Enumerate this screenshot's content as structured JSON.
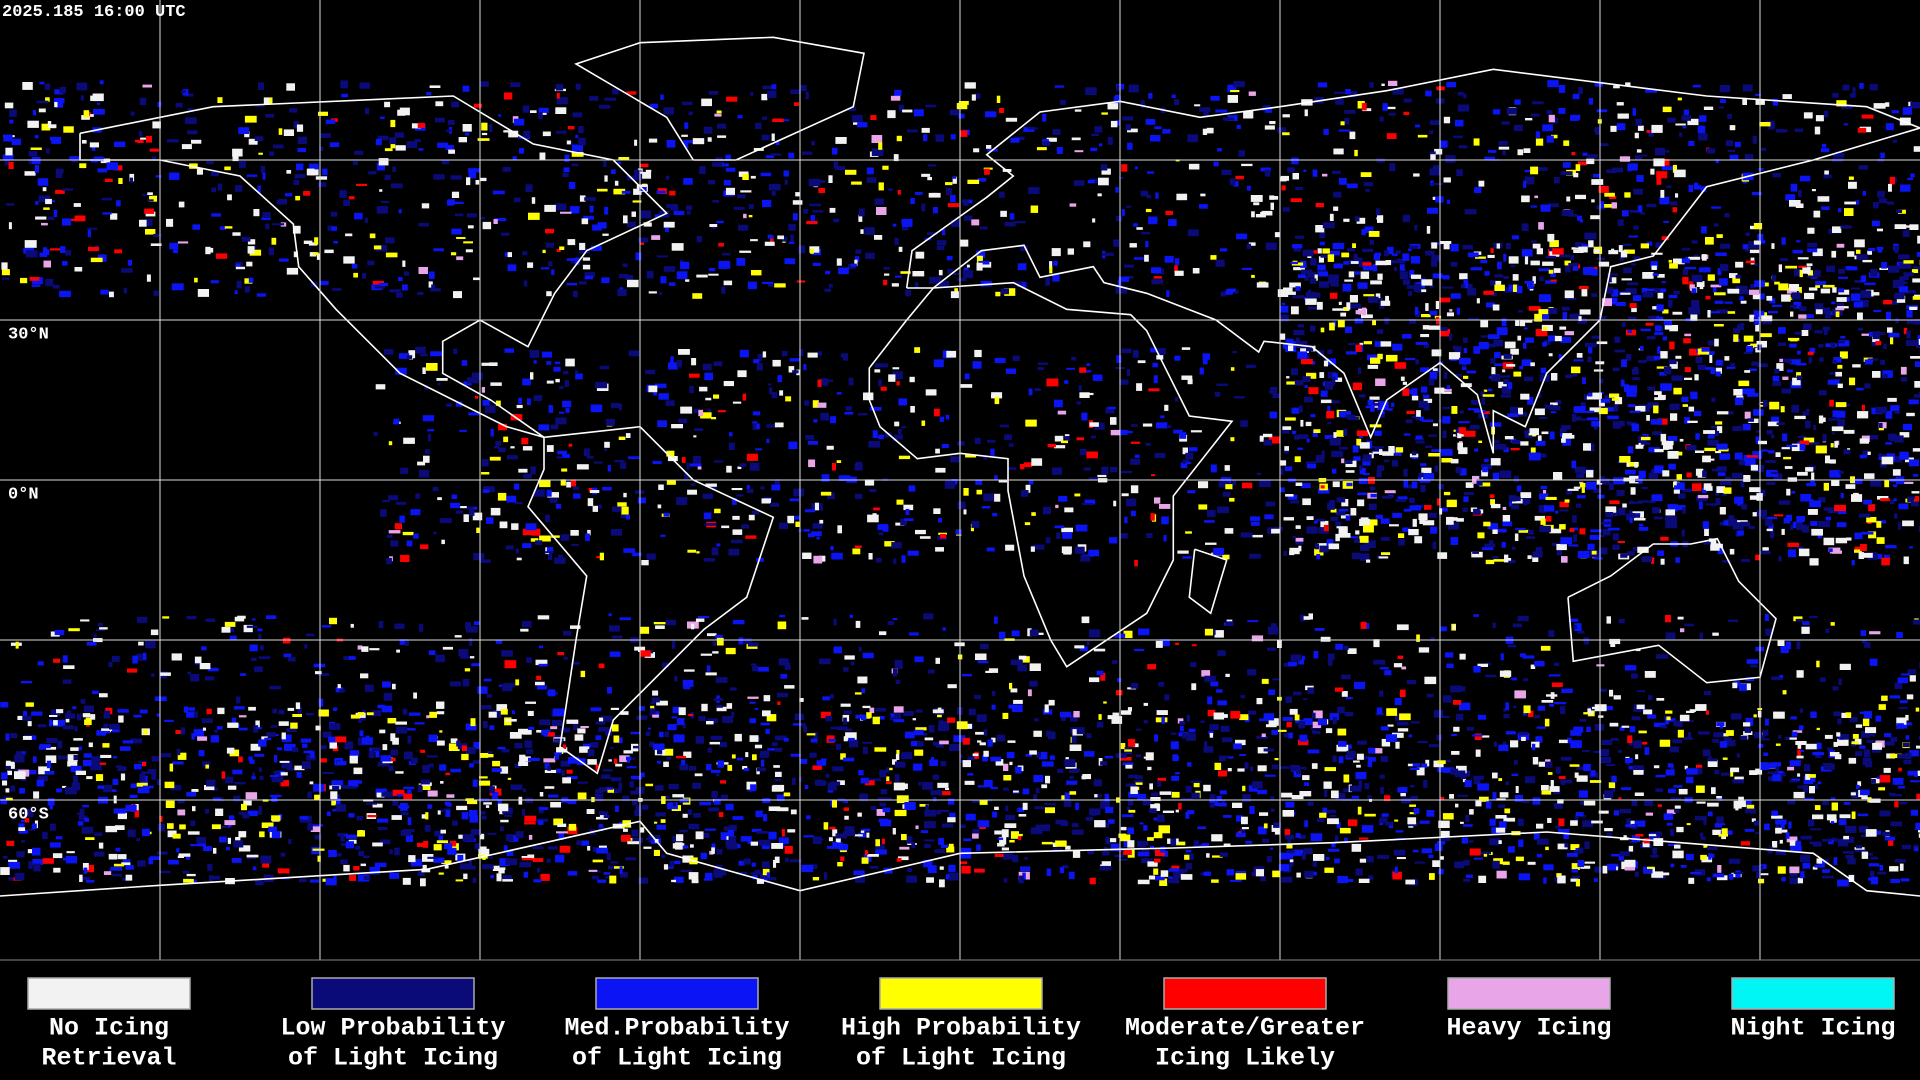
{
  "timestamp": "2025.185 16:00 UTC",
  "lat_labels": [
    {
      "text": "30°N",
      "lat": 30
    },
    {
      "text": "0°N",
      "lat": 0
    },
    {
      "text": "60°S",
      "lat": -60
    }
  ],
  "legend": [
    {
      "color": "#f2f2f2",
      "lines": [
        "No Icing",
        "Retrieval"
      ]
    },
    {
      "color": "#0a0a78",
      "lines": [
        "Low Probability",
        "of Light Icing"
      ]
    },
    {
      "color": "#0a14f5",
      "lines": [
        "Med.Probability",
        "of Light Icing"
      ]
    },
    {
      "color": "#ffff00",
      "lines": [
        "High Probability",
        "of Light Icing"
      ]
    },
    {
      "color": "#ff0000",
      "lines": [
        "Moderate/Greater",
        "Icing Likely"
      ]
    },
    {
      "color": "#e8a6e8",
      "lines": [
        "Heavy Icing"
      ]
    },
    {
      "color": "#00f5f5",
      "lines": [
        "Night Icing"
      ]
    }
  ]
}
